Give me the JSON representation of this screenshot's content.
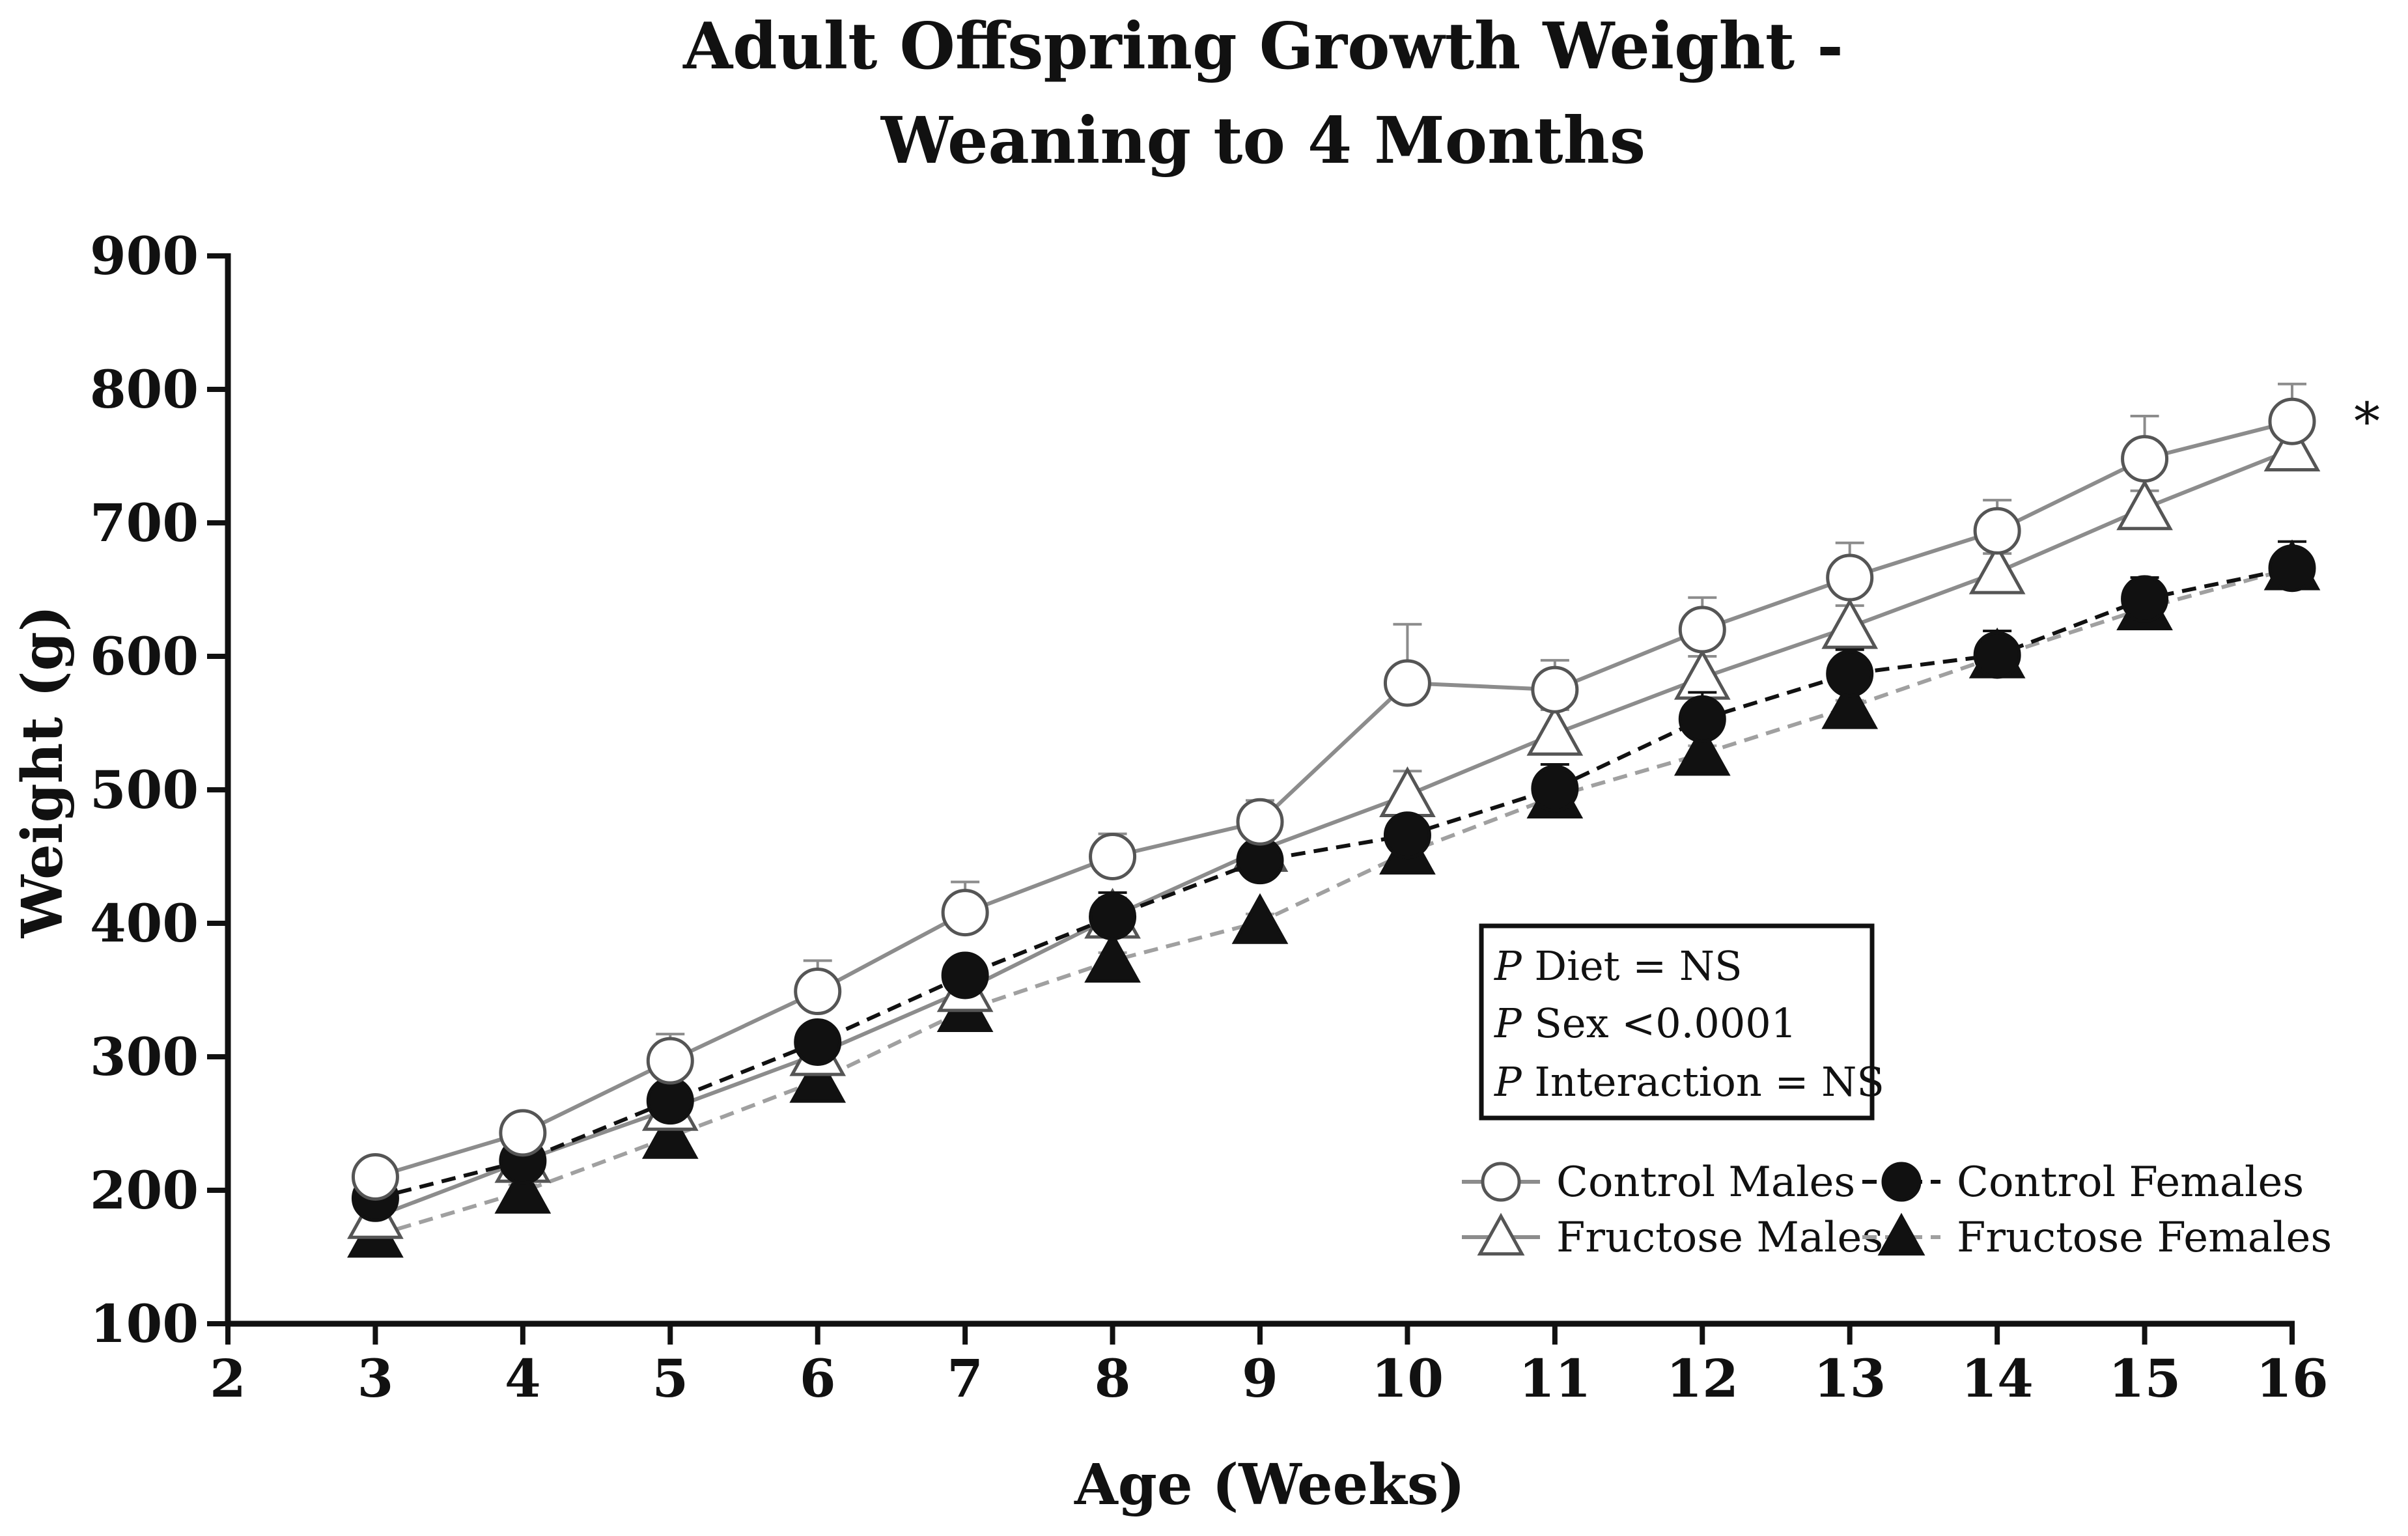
{
  "chart_data": {
    "type": "line",
    "title": [
      "Adult Offspring Growth Weight -",
      "Weaning to 4 Months"
    ],
    "xlabel": "Age (Weeks)",
    "ylabel": "Weight (g)",
    "xlim": [
      2,
      16
    ],
    "ylim": [
      100,
      900
    ],
    "x_ticks": [
      2,
      3,
      4,
      5,
      6,
      7,
      8,
      9,
      10,
      11,
      12,
      13,
      14,
      15,
      16
    ],
    "y_ticks": [
      100,
      200,
      300,
      400,
      500,
      600,
      700,
      800,
      900
    ],
    "x": [
      3,
      4,
      5,
      6,
      7,
      8,
      9,
      10,
      11,
      12,
      13,
      14,
      15,
      16
    ],
    "series": [
      {
        "name": "Control Males",
        "values": [
          210,
          243,
          297,
          349,
          408,
          450,
          476,
          580,
          575,
          620,
          659,
          694,
          748,
          776
        ],
        "error": [
          8,
          13,
          20,
          23,
          23,
          17,
          16,
          44,
          22,
          24,
          26,
          23,
          32,
          28
        ],
        "color": "#8c8c8c",
        "dash": "solid",
        "marker": "circle",
        "filled": false
      },
      {
        "name": "Fructose Males",
        "values": [
          180,
          222,
          261,
          302,
          350,
          405,
          455,
          496,
          542,
          584,
          622,
          663,
          711,
          755
        ],
        "error": [
          6,
          8,
          10,
          12,
          12,
          14,
          12,
          18,
          18,
          16,
          16,
          14,
          13,
          12
        ],
        "color": "#8c8c8c",
        "dash": "solid",
        "marker": "triangle",
        "filled": false
      },
      {
        "name": "Control Females",
        "values": [
          194,
          222,
          267,
          311,
          361,
          405,
          447,
          466,
          501,
          553,
          587,
          601,
          643,
          666
        ],
        "error": [
          6,
          7,
          9,
          12,
          12,
          18,
          10,
          10,
          18,
          20,
          18,
          18,
          16,
          20
        ],
        "color": "#111111",
        "dash": "dashed",
        "marker": "circle",
        "filled": true
      },
      {
        "name": "Fructose Females",
        "values": [
          166,
          199,
          240,
          282,
          335,
          372,
          401,
          453,
          495,
          527,
          562,
          600,
          636,
          666
        ],
        "error": [
          4,
          5,
          6,
          7,
          7,
          6,
          6,
          6,
          6,
          6,
          5,
          5,
          5,
          5
        ],
        "color": "#a0a0a0",
        "dash": "dashed",
        "marker": "triangle",
        "filled": true
      }
    ],
    "annotations": {
      "stats": [
        {
          "p": "P",
          "text": " Diet = NS"
        },
        {
          "p": "P",
          "text": " Sex <0.0001"
        },
        {
          "p": "P",
          "text": " Interaction = NS"
        }
      ],
      "significance": "*"
    },
    "legend_position": "bottom-right",
    "grid": false
  }
}
